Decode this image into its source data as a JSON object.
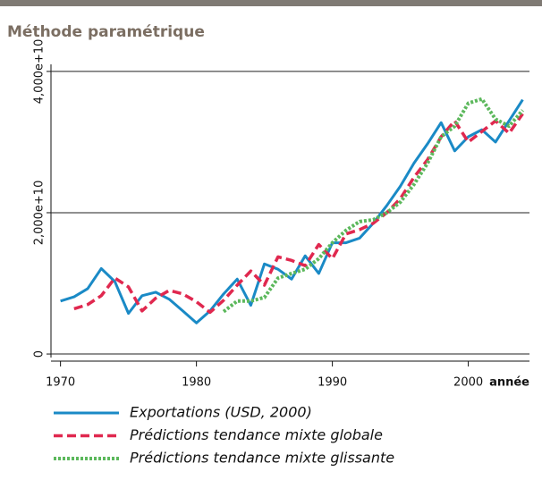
{
  "chart_data": {
    "type": "line",
    "title": "Méthode paramétrique",
    "xlabel": "année",
    "x": [
      1970,
      1971,
      1972,
      1973,
      1974,
      1975,
      1976,
      1977,
      1978,
      1979,
      1980,
      1981,
      1982,
      1983,
      1984,
      1985,
      1986,
      1987,
      1988,
      1989,
      1990,
      1991,
      1992,
      1993,
      1994,
      1995,
      1996,
      1997,
      1998,
      1999,
      2000,
      2001,
      2002,
      2003,
      2004
    ],
    "series": [
      {
        "name": "Exportations (USD, 2000)",
        "color": "#1a8ac6",
        "dash": "solid",
        "values": [
          7500000000000.0,
          8100000000000.0,
          9250000000000.0,
          12100000000000.0,
          10250000000000.0,
          5750000000000.0,
          8250000000000.0,
          8750000000000.0,
          7750000000000.0,
          6100000000000.0,
          4400000000000.0,
          6100000000000.0,
          8500000000000.0,
          10600000000000.0,
          6900000000000.0,
          12750000000000.0,
          12000000000000.0,
          10600000000000.0,
          13900000000000.0,
          11400000000000.0,
          15750000000000.0,
          15750000000000.0,
          16400000000000.0,
          18500000000000.0,
          21000000000000.0,
          23750000000000.0,
          27000000000000.0,
          29750000000000.0,
          32750000000000.0,
          28750000000000.0,
          30750000000000.0,
          31750000000000.0,
          30000000000000.0,
          33000000000000.0,
          36000000000000.0
        ]
      },
      {
        "name": "Prédictions tendance mixte globale",
        "color": "#e0284f",
        "dash": "dashed",
        "values": [
          null,
          6400000000000.0,
          7000000000000.0,
          8250000000000.0,
          10750000000000.0,
          9500000000000.0,
          6100000000000.0,
          7900000000000.0,
          9000000000000.0,
          8500000000000.0,
          7400000000000.0,
          5900000000000.0,
          7600000000000.0,
          9750000000000.0,
          11750000000000.0,
          9750000000000.0,
          13750000000000.0,
          13250000000000.0,
          12500000000000.0,
          15500000000000.0,
          13500000000000.0,
          17000000000000.0,
          17600000000000.0,
          18500000000000.0,
          20000000000000.0,
          22000000000000.0,
          25000000000000.0,
          27500000000000.0,
          30750000000000.0,
          33000000000000.0,
          30000000000000.0,
          31500000000000.0,
          33000000000000.0,
          31250000000000.0,
          34000000000000.0
        ]
      },
      {
        "name": "Prédictions tendance mixte glissante",
        "color": "#5cb85c",
        "dash": "dotted",
        "values": [
          null,
          null,
          null,
          null,
          null,
          null,
          null,
          null,
          null,
          null,
          null,
          null,
          6000000000000.0,
          7500000000000.0,
          7500000000000.0,
          8000000000000.0,
          10750000000000.0,
          11400000000000.0,
          12000000000000.0,
          13500000000000.0,
          15750000000000.0,
          17500000000000.0,
          18750000000000.0,
          19000000000000.0,
          20000000000000.0,
          21500000000000.0,
          24000000000000.0,
          27000000000000.0,
          30750000000000.0,
          32250000000000.0,
          35500000000000.0,
          36100000000000.0,
          33250000000000.0,
          32250000000000.0,
          34500000000000.0
        ]
      }
    ],
    "xlim": [
      1969.3,
      2004.5
    ],
    "xticks": [
      1970,
      1980,
      1990,
      2000
    ],
    "ylim": [
      -500000000000.0,
      41000000000000.0
    ],
    "yticks": [
      0,
      {
        "value": 20000000000000,
        "label": "2,000e+10"
      },
      {
        "value": 40000000000000,
        "label": "4,000e+10"
      }
    ],
    "grid": true
  }
}
